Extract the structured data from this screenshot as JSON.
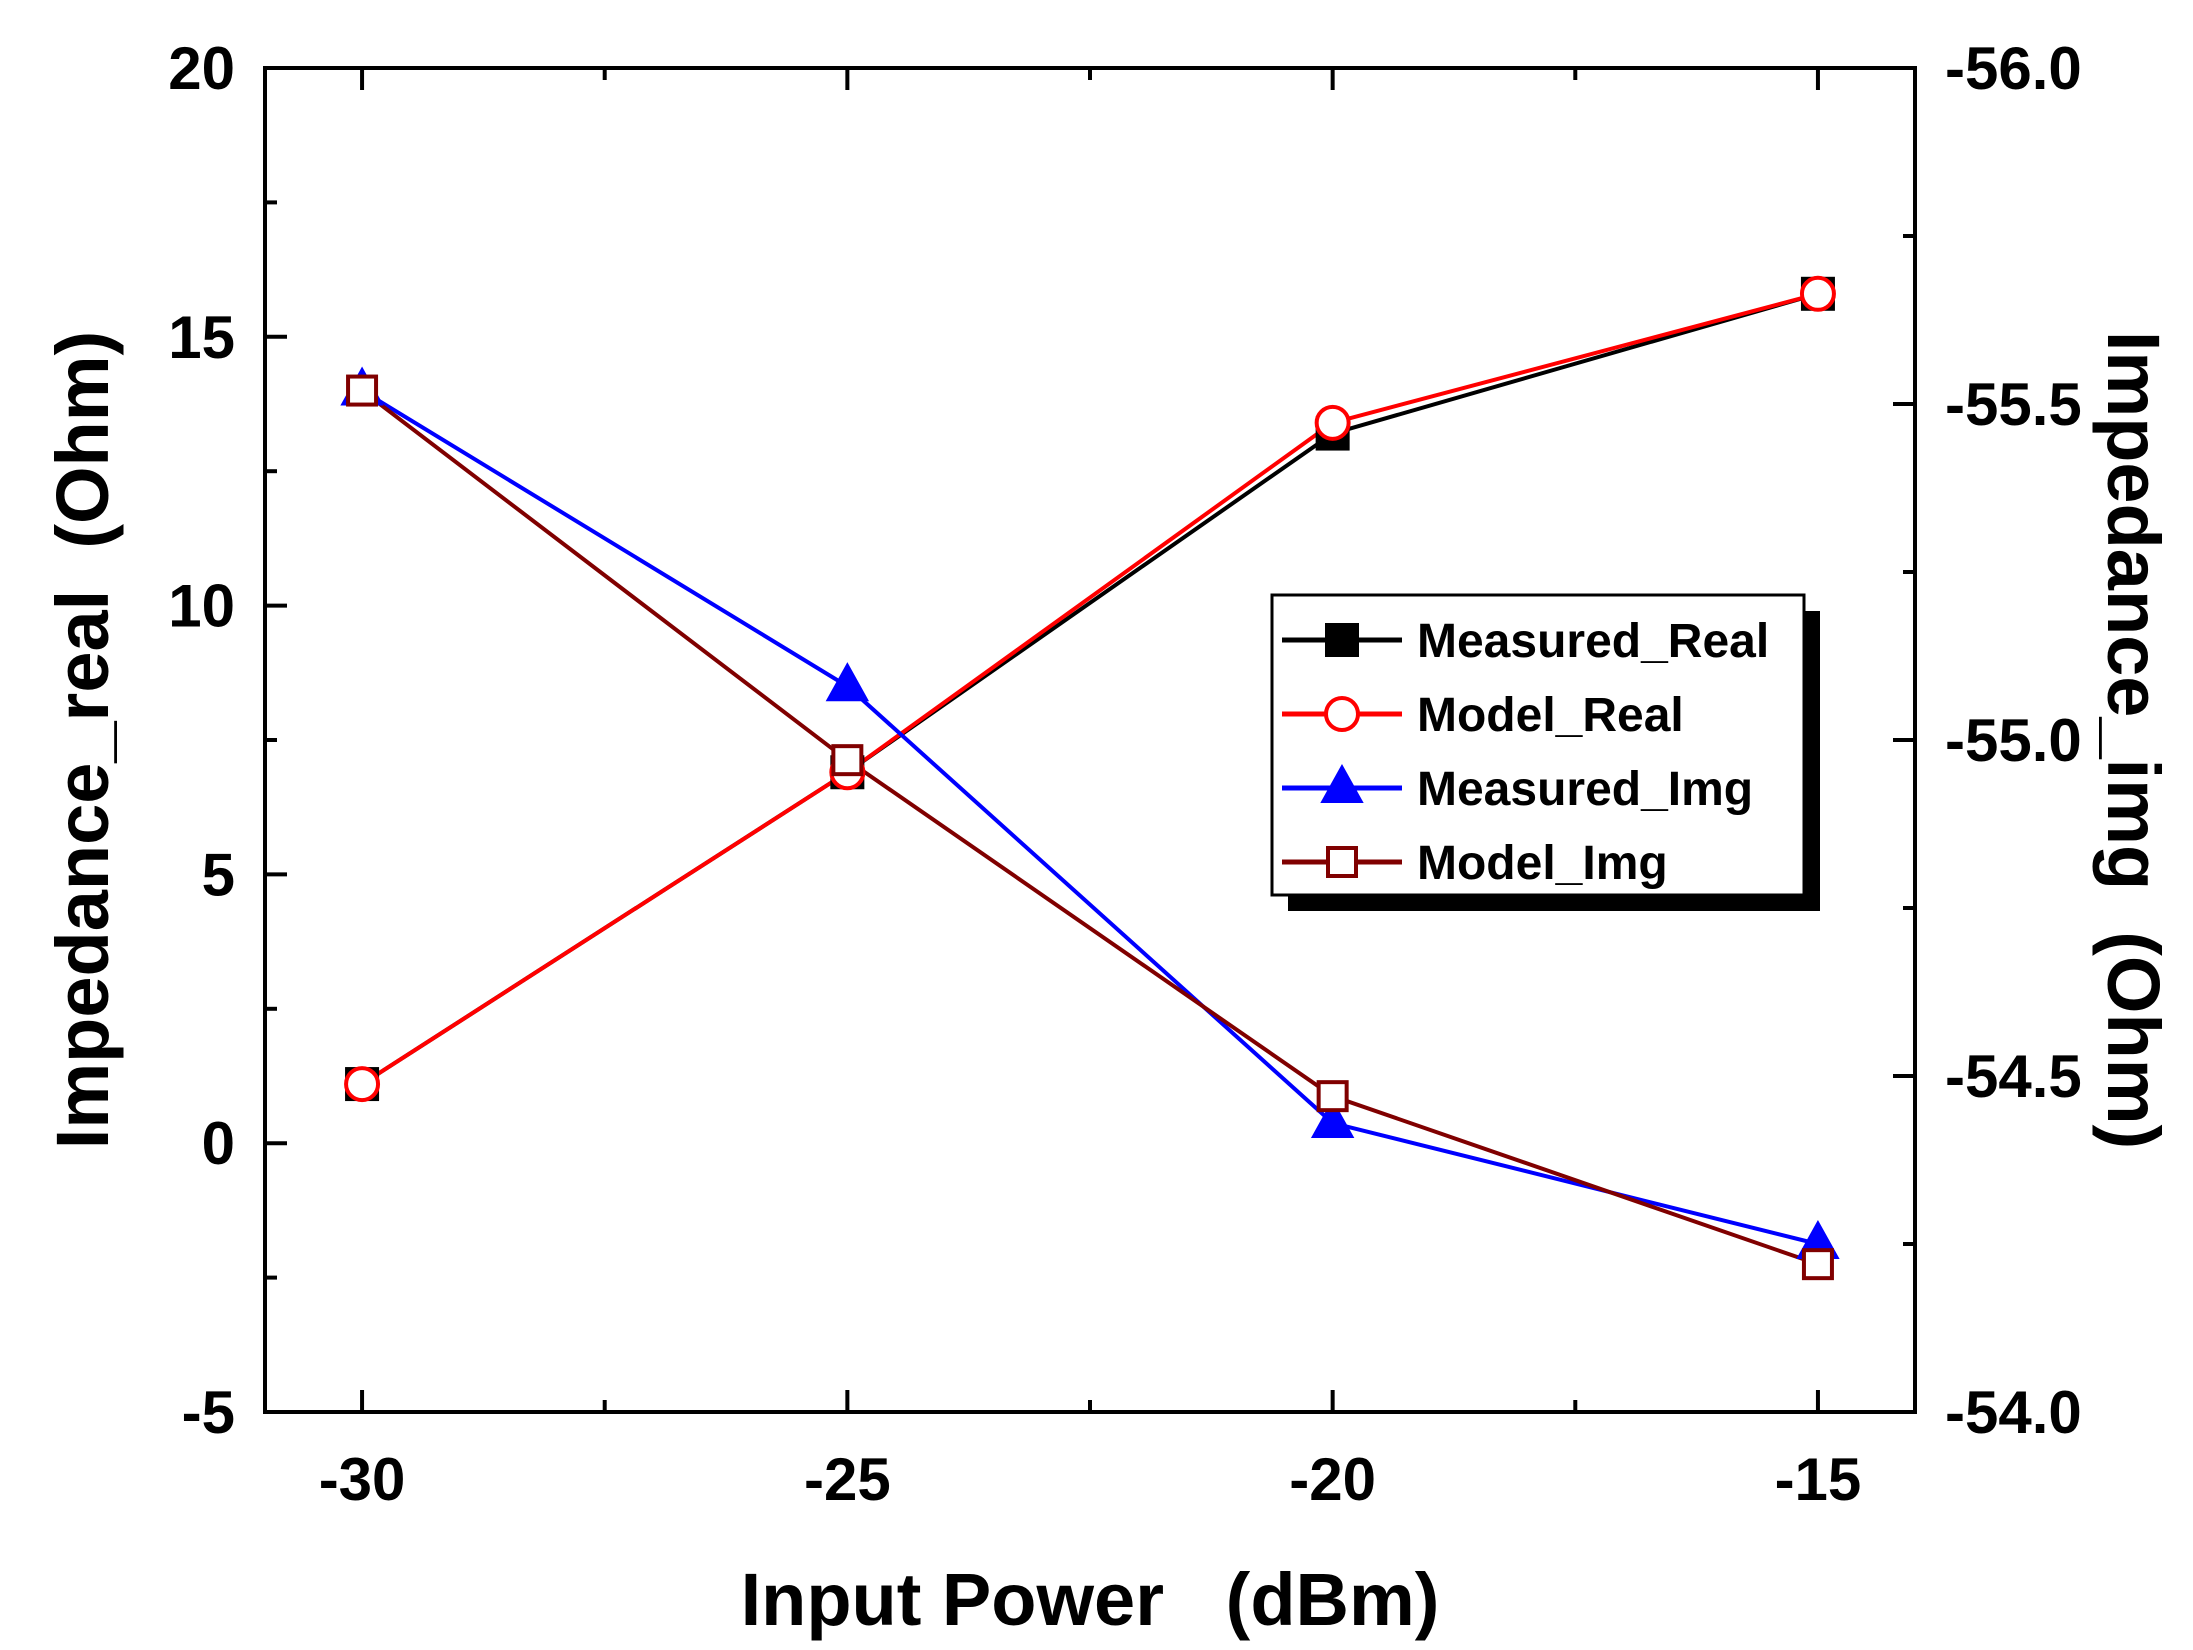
{
  "chart_data": {
    "type": "line",
    "xlabel": "Input Power   (dBm)",
    "ylabel": "Impedance_real  (Ohm)",
    "y2label": "Impedance_img  (Ohm)",
    "xlim": [
      -31,
      -14
    ],
    "ylim": [
      -5,
      20
    ],
    "y2lim": [
      -54.0,
      -56.0
    ],
    "x_ticks": [
      -30,
      -25,
      -20,
      -15
    ],
    "x_tick_labels": [
      "-30",
      "-25",
      "-20",
      "-15"
    ],
    "y_ticks": [
      -5,
      0,
      5,
      10,
      15,
      20
    ],
    "y_tick_labels": [
      "-5",
      "0",
      "5",
      "10",
      "15",
      "20"
    ],
    "y2_ticks": [
      -54.0,
      -54.5,
      -55.0,
      -55.5,
      -56.0
    ],
    "y2_tick_labels": [
      "-54.0",
      "-54.5",
      "-55.0",
      "-55.5",
      "-56.0"
    ],
    "grid": false,
    "legend_position": "center-right",
    "series": [
      {
        "name": "Measured_Real",
        "axis": "left",
        "color": "#000000",
        "marker": "filled-square",
        "x": [
          -30,
          -25,
          -20,
          -15
        ],
        "values": [
          1.1,
          6.9,
          13.2,
          15.8
        ]
      },
      {
        "name": "Model_Real",
        "axis": "left",
        "color": "#ff0000",
        "marker": "open-circle",
        "x": [
          -30,
          -25,
          -20,
          -15
        ],
        "values": [
          1.1,
          6.9,
          13.4,
          15.8
        ]
      },
      {
        "name": "Measured_Img",
        "axis": "right",
        "color": "#0000ff",
        "marker": "filled-triangle",
        "x": [
          -30,
          -25,
          -20,
          -15
        ],
        "values": [
          -55.52,
          -55.08,
          -54.43,
          -54.25
        ]
      },
      {
        "name": "Model_Img",
        "axis": "right",
        "color": "#800000",
        "marker": "open-square",
        "x": [
          -30,
          -25,
          -20,
          -15
        ],
        "values": [
          -55.52,
          -54.97,
          -54.47,
          -54.22
        ]
      }
    ]
  }
}
